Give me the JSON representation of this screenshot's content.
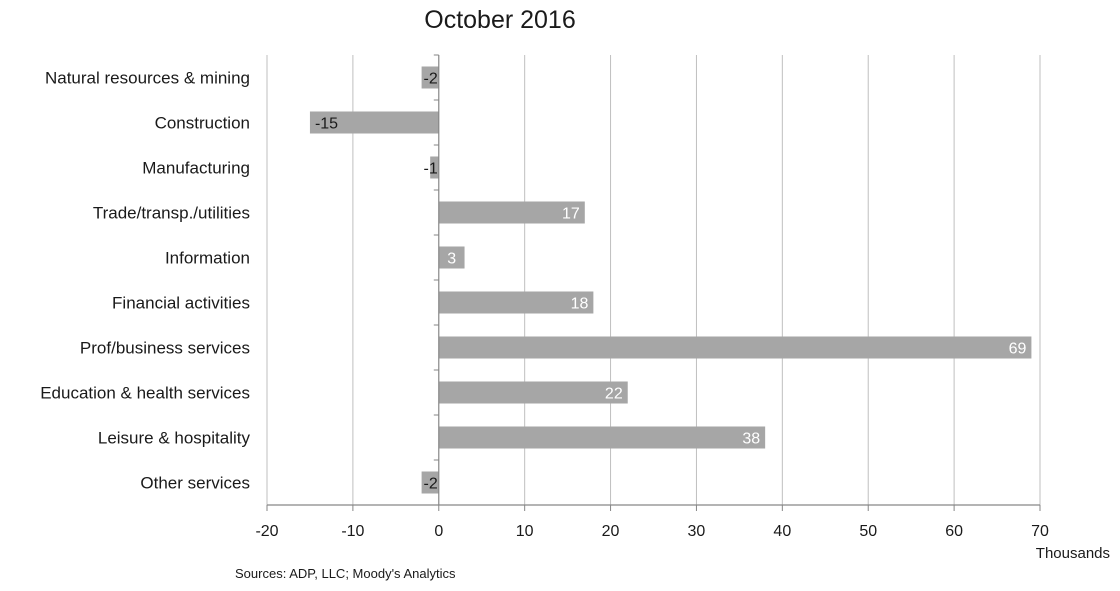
{
  "chart_data": {
    "type": "bar",
    "orientation": "horizontal",
    "title": "October 2016",
    "unit_label": "Thousands",
    "source": "Sources: ADP, LLC; Moody's Analytics",
    "categories": [
      "Natural resources & mining",
      "Construction",
      "Manufacturing",
      "Trade/transp./utilities",
      "Information",
      "Financial activities",
      "Prof/business services",
      "Education & health services",
      "Leisure & hospitality",
      "Other services"
    ],
    "values": [
      -2,
      -15,
      -1,
      17,
      3,
      18,
      69,
      22,
      38,
      -2
    ],
    "data_labels": [
      "-2",
      "-15",
      "-1",
      "17",
      "3",
      "18",
      "69",
      "22",
      "38",
      "-2"
    ],
    "xlim": [
      -20,
      70
    ],
    "xticks": [
      -20,
      -10,
      0,
      10,
      20,
      30,
      40,
      50,
      60,
      70
    ],
    "xtick_labels": [
      "-20",
      "-10",
      "0",
      "10",
      "20",
      "30",
      "40",
      "50",
      "60",
      "70"
    ],
    "grid": "vertical",
    "bar_color": "#a6a6a6",
    "grid_color": "#bfbfbf",
    "axis_color": "#868686"
  }
}
